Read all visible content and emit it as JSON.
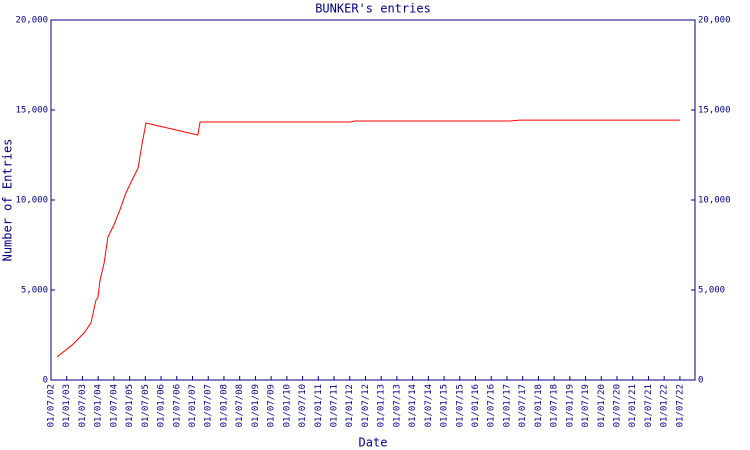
{
  "chart_data": {
    "type": "line",
    "title": "BUNKER's entries",
    "x_label": "Date",
    "y_label": "Number of Entries",
    "x": [
      2002.69,
      2003.17,
      2003.55,
      2003.77,
      2003.93,
      2003.99,
      2004.06,
      2004.19,
      2004.31,
      2004.5,
      2004.69,
      2004.88,
      2005.08,
      2005.27,
      2005.39,
      2005.52,
      2007.17,
      2007.24,
      2012.0,
      2012.16,
      2017.09,
      2017.41,
      2022.5
    ],
    "values": [
      1280,
      1940,
      2610,
      3170,
      4440,
      4560,
      5560,
      6500,
      7940,
      8610,
      9440,
      10390,
      11110,
      11780,
      13060,
      14280,
      13610,
      14330,
      14330,
      14390,
      14390,
      14440,
      14440
    ],
    "color": "#ff0000",
    "axis_color": "#000080",
    "xlim": [
      2002.5,
      2022.98
    ],
    "xticks": [
      {
        "value": 2002.5,
        "label": "01/07/02"
      },
      {
        "value": 2003,
        "label": "01/01/03"
      },
      {
        "value": 2003.5,
        "label": "01/07/03"
      },
      {
        "value": 2004,
        "label": "01/01/04"
      },
      {
        "value": 2004.5,
        "label": "01/07/04"
      },
      {
        "value": 2005,
        "label": "01/01/05"
      },
      {
        "value": 2005.5,
        "label": "01/07/05"
      },
      {
        "value": 2006,
        "label": "01/01/06"
      },
      {
        "value": 2006.5,
        "label": "01/07/06"
      },
      {
        "value": 2007,
        "label": "01/01/07"
      },
      {
        "value": 2007.5,
        "label": "01/07/07"
      },
      {
        "value": 2008,
        "label": "01/01/08"
      },
      {
        "value": 2008.5,
        "label": "01/07/08"
      },
      {
        "value": 2009,
        "label": "01/01/09"
      },
      {
        "value": 2009.5,
        "label": "01/07/09"
      },
      {
        "value": 2010,
        "label": "01/01/10"
      },
      {
        "value": 2010.5,
        "label": "01/07/10"
      },
      {
        "value": 2011,
        "label": "01/01/11"
      },
      {
        "value": 2011.5,
        "label": "01/07/11"
      },
      {
        "value": 2012,
        "label": "01/01/12"
      },
      {
        "value": 2012.5,
        "label": "01/07/12"
      },
      {
        "value": 2013,
        "label": "01/01/13"
      },
      {
        "value": 2013.5,
        "label": "01/07/13"
      },
      {
        "value": 2014,
        "label": "01/01/14"
      },
      {
        "value": 2014.5,
        "label": "01/07/14"
      },
      {
        "value": 2015,
        "label": "01/01/15"
      },
      {
        "value": 2015.5,
        "label": "01/07/15"
      },
      {
        "value": 2016,
        "label": "01/01/16"
      },
      {
        "value": 2016.5,
        "label": "01/07/16"
      },
      {
        "value": 2017,
        "label": "01/01/17"
      },
      {
        "value": 2017.5,
        "label": "01/07/17"
      },
      {
        "value": 2018,
        "label": "01/01/18"
      },
      {
        "value": 2018.5,
        "label": "01/07/18"
      },
      {
        "value": 2019,
        "label": "01/01/19"
      },
      {
        "value": 2019.5,
        "label": "01/07/19"
      },
      {
        "value": 2020,
        "label": "01/01/20"
      },
      {
        "value": 2020.5,
        "label": "01/07/20"
      },
      {
        "value": 2021,
        "label": "01/01/21"
      },
      {
        "value": 2021.5,
        "label": "01/07/21"
      },
      {
        "value": 2022,
        "label": "01/01/22"
      },
      {
        "value": 2022.5,
        "label": "01/07/22"
      }
    ],
    "ylim": [
      0,
      20000
    ],
    "yticks": [
      0,
      {
        "value": 5000,
        "label": "5,000"
      },
      {
        "value": 10000,
        "label": "10,000"
      },
      {
        "value": 15000,
        "label": "15,000"
      },
      {
        "value": 20000,
        "label": "20,000"
      }
    ],
    "y2lim": [
      0,
      20000
    ],
    "y2ticks": [
      0,
      {
        "value": 5000,
        "label": "5,000"
      },
      {
        "value": 10000,
        "label": "10,000"
      },
      {
        "value": 15000,
        "label": "15,000"
      },
      {
        "value": 20000,
        "label": "20,000"
      }
    ]
  }
}
